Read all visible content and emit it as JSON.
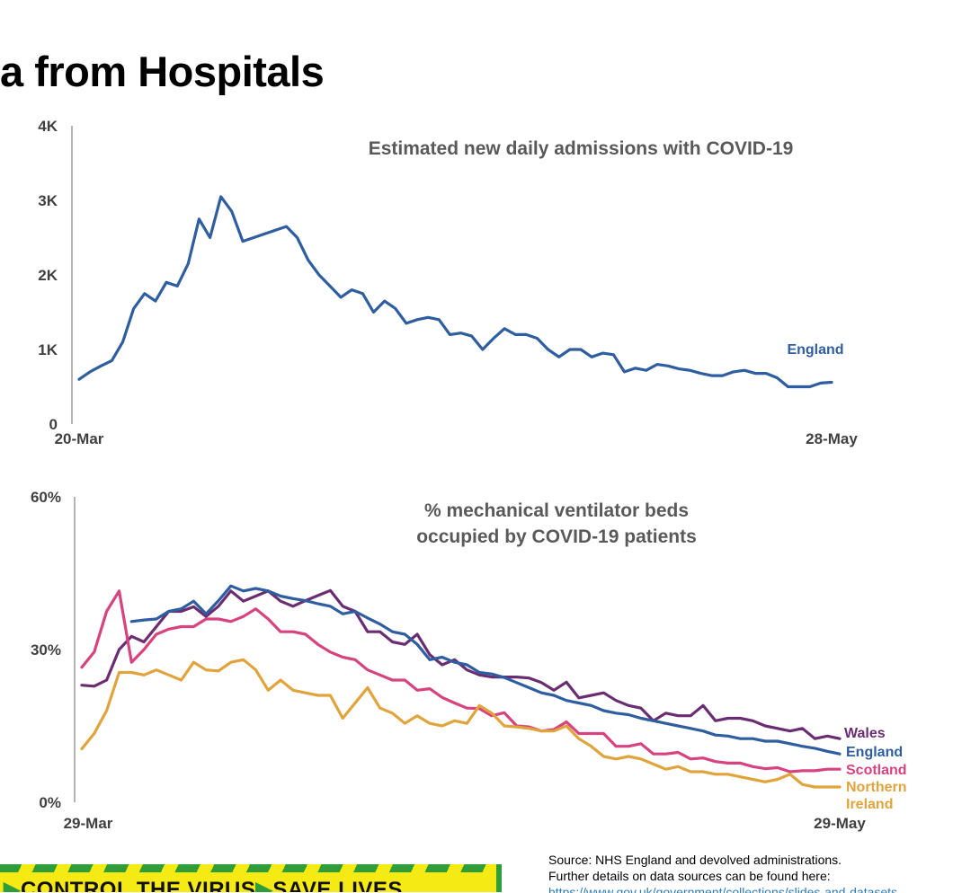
{
  "page": {
    "title": "a from Hospitals",
    "source_line1": "Source: NHS England and devolved administrations.",
    "source_line2": "Further details on data sources can be found here:",
    "source_link": "https://www.gov.uk/government/collections/slides-and-datasets",
    "banner_part1": "CONTROL THE VIRUS",
    "banner_arrow1": "▶",
    "banner_part2": "SAVE LIVES",
    "banner_arrow0": "▶",
    "colors": {
      "banner_yellow": "#f6ea15",
      "banner_green": "#2f9e3a"
    }
  },
  "chart_data": [
    {
      "type": "line",
      "title": "Estimated new daily admissions with COVID-19",
      "x_tick_labels": [
        "20-Mar",
        "28-May"
      ],
      "x_range": [
        "20-Mar",
        "28-May"
      ],
      "y_tick_labels": [
        "0",
        "1K",
        "2K",
        "3K",
        "4K"
      ],
      "ylim": [
        0,
        4000
      ],
      "grid": false,
      "series": [
        {
          "name": "England",
          "color": "#2e5ea0",
          "values": [
            600,
            700,
            780,
            850,
            1100,
            1550,
            1750,
            1650,
            1900,
            1850,
            2150,
            2750,
            2500,
            3050,
            2850,
            2450,
            2500,
            2550,
            2600,
            2650,
            2500,
            2200,
            2000,
            1850,
            1700,
            1800,
            1750,
            1500,
            1650,
            1550,
            1350,
            1400,
            1430,
            1400,
            1200,
            1220,
            1180,
            1000,
            1150,
            1280,
            1200,
            1200,
            1150,
            1000,
            900,
            1000,
            1000,
            900,
            950,
            930,
            700,
            750,
            720,
            800,
            780,
            740,
            720,
            680,
            650,
            650,
            700,
            720,
            680,
            680,
            620,
            500,
            500,
            500,
            550,
            560
          ]
        }
      ]
    },
    {
      "type": "line",
      "title": "% mechanical ventilator beds occupied by COVID-19 patients",
      "x_tick_labels": [
        "29-Mar",
        "29-May"
      ],
      "x_range": [
        "29-Mar",
        "29-May"
      ],
      "y_tick_labels": [
        "0%",
        "30%",
        "60%"
      ],
      "ylim": [
        0,
        60
      ],
      "grid": false,
      "series": [
        {
          "name": "Wales",
          "color": "#6b2d72",
          "values": [
            23,
            22.8,
            24,
            30,
            32.6,
            31.5,
            34.5,
            37.5,
            37.5,
            38.4,
            36.5,
            38.5,
            41.5,
            39.5,
            40.5,
            41.5,
            39.5,
            38.5,
            39.6,
            40.6,
            41.6,
            38.5,
            37.5,
            33.5,
            33.5,
            31.5,
            31,
            33,
            29,
            27,
            28,
            26,
            25,
            24.6,
            24.6,
            24.6,
            24.4,
            23.5,
            22,
            23.6,
            20.5,
            21,
            21.5,
            20,
            19,
            18.5,
            16,
            17.5,
            17,
            17,
            19,
            16,
            16.5,
            16.5,
            16,
            15,
            14.5,
            14,
            14.5,
            12.5,
            13,
            12.5
          ]
        },
        {
          "name": "England",
          "color": "#2e5ea0",
          "values": [
            null,
            null,
            null,
            null,
            35.5,
            35.8,
            36,
            37.5,
            38,
            39.5,
            37,
            39.6,
            42.5,
            41.5,
            42,
            41.5,
            40.5,
            40,
            39.6,
            39,
            38.5,
            37,
            37.5,
            36.2,
            35,
            33.5,
            33,
            31,
            28,
            28.5,
            27.5,
            27,
            25.5,
            25.2,
            24.5,
            23.5,
            22.5,
            21.5,
            21,
            20,
            19.5,
            19,
            18,
            17.5,
            17.2,
            16.5,
            16,
            15.5,
            15,
            14.5,
            14,
            13.2,
            13,
            12.5,
            12.5,
            12,
            12,
            11.5,
            11,
            10.6,
            10,
            9.5
          ]
        },
        {
          "name": "Scotland",
          "color": "#d6437f",
          "values": [
            26.5,
            29.5,
            37.5,
            41.5,
            27.5,
            30,
            33,
            34,
            34.5,
            34.5,
            36,
            36,
            35.5,
            36.5,
            38,
            36,
            33.5,
            33.5,
            33,
            31,
            29.5,
            28.5,
            28,
            26,
            25,
            24,
            24,
            22,
            22.3,
            20.6,
            19.5,
            18.5,
            18.4,
            17,
            17.6,
            15,
            14.8,
            14,
            14.3,
            15.8,
            13.5,
            13.5,
            13.5,
            11,
            11,
            11.5,
            9.5,
            9.5,
            9.8,
            8.5,
            8.7,
            8,
            7.7,
            7.7,
            7,
            6.6,
            6.8,
            6,
            6.2,
            6.2,
            6.5,
            6.5
          ]
        },
        {
          "name": "Northern Ireland",
          "color": "#e1a43c",
          "values": [
            10.5,
            13.5,
            18,
            25.5,
            25.5,
            25,
            26,
            25,
            24,
            27.5,
            26,
            25.8,
            27.5,
            28,
            26,
            22,
            24,
            22,
            21.5,
            21,
            21,
            16.5,
            19.5,
            22.5,
            18.5,
            17.5,
            15.5,
            17,
            15.5,
            15,
            16,
            15.5,
            19,
            17.5,
            15,
            14.8,
            14.5,
            14,
            14,
            15,
            12.5,
            11,
            9,
            8.5,
            9,
            8.5,
            7.5,
            6.5,
            7,
            6,
            6,
            5.5,
            5.5,
            5,
            4.5,
            4,
            4.5,
            5.5,
            3.5,
            3,
            3,
            3
          ]
        }
      ]
    }
  ]
}
